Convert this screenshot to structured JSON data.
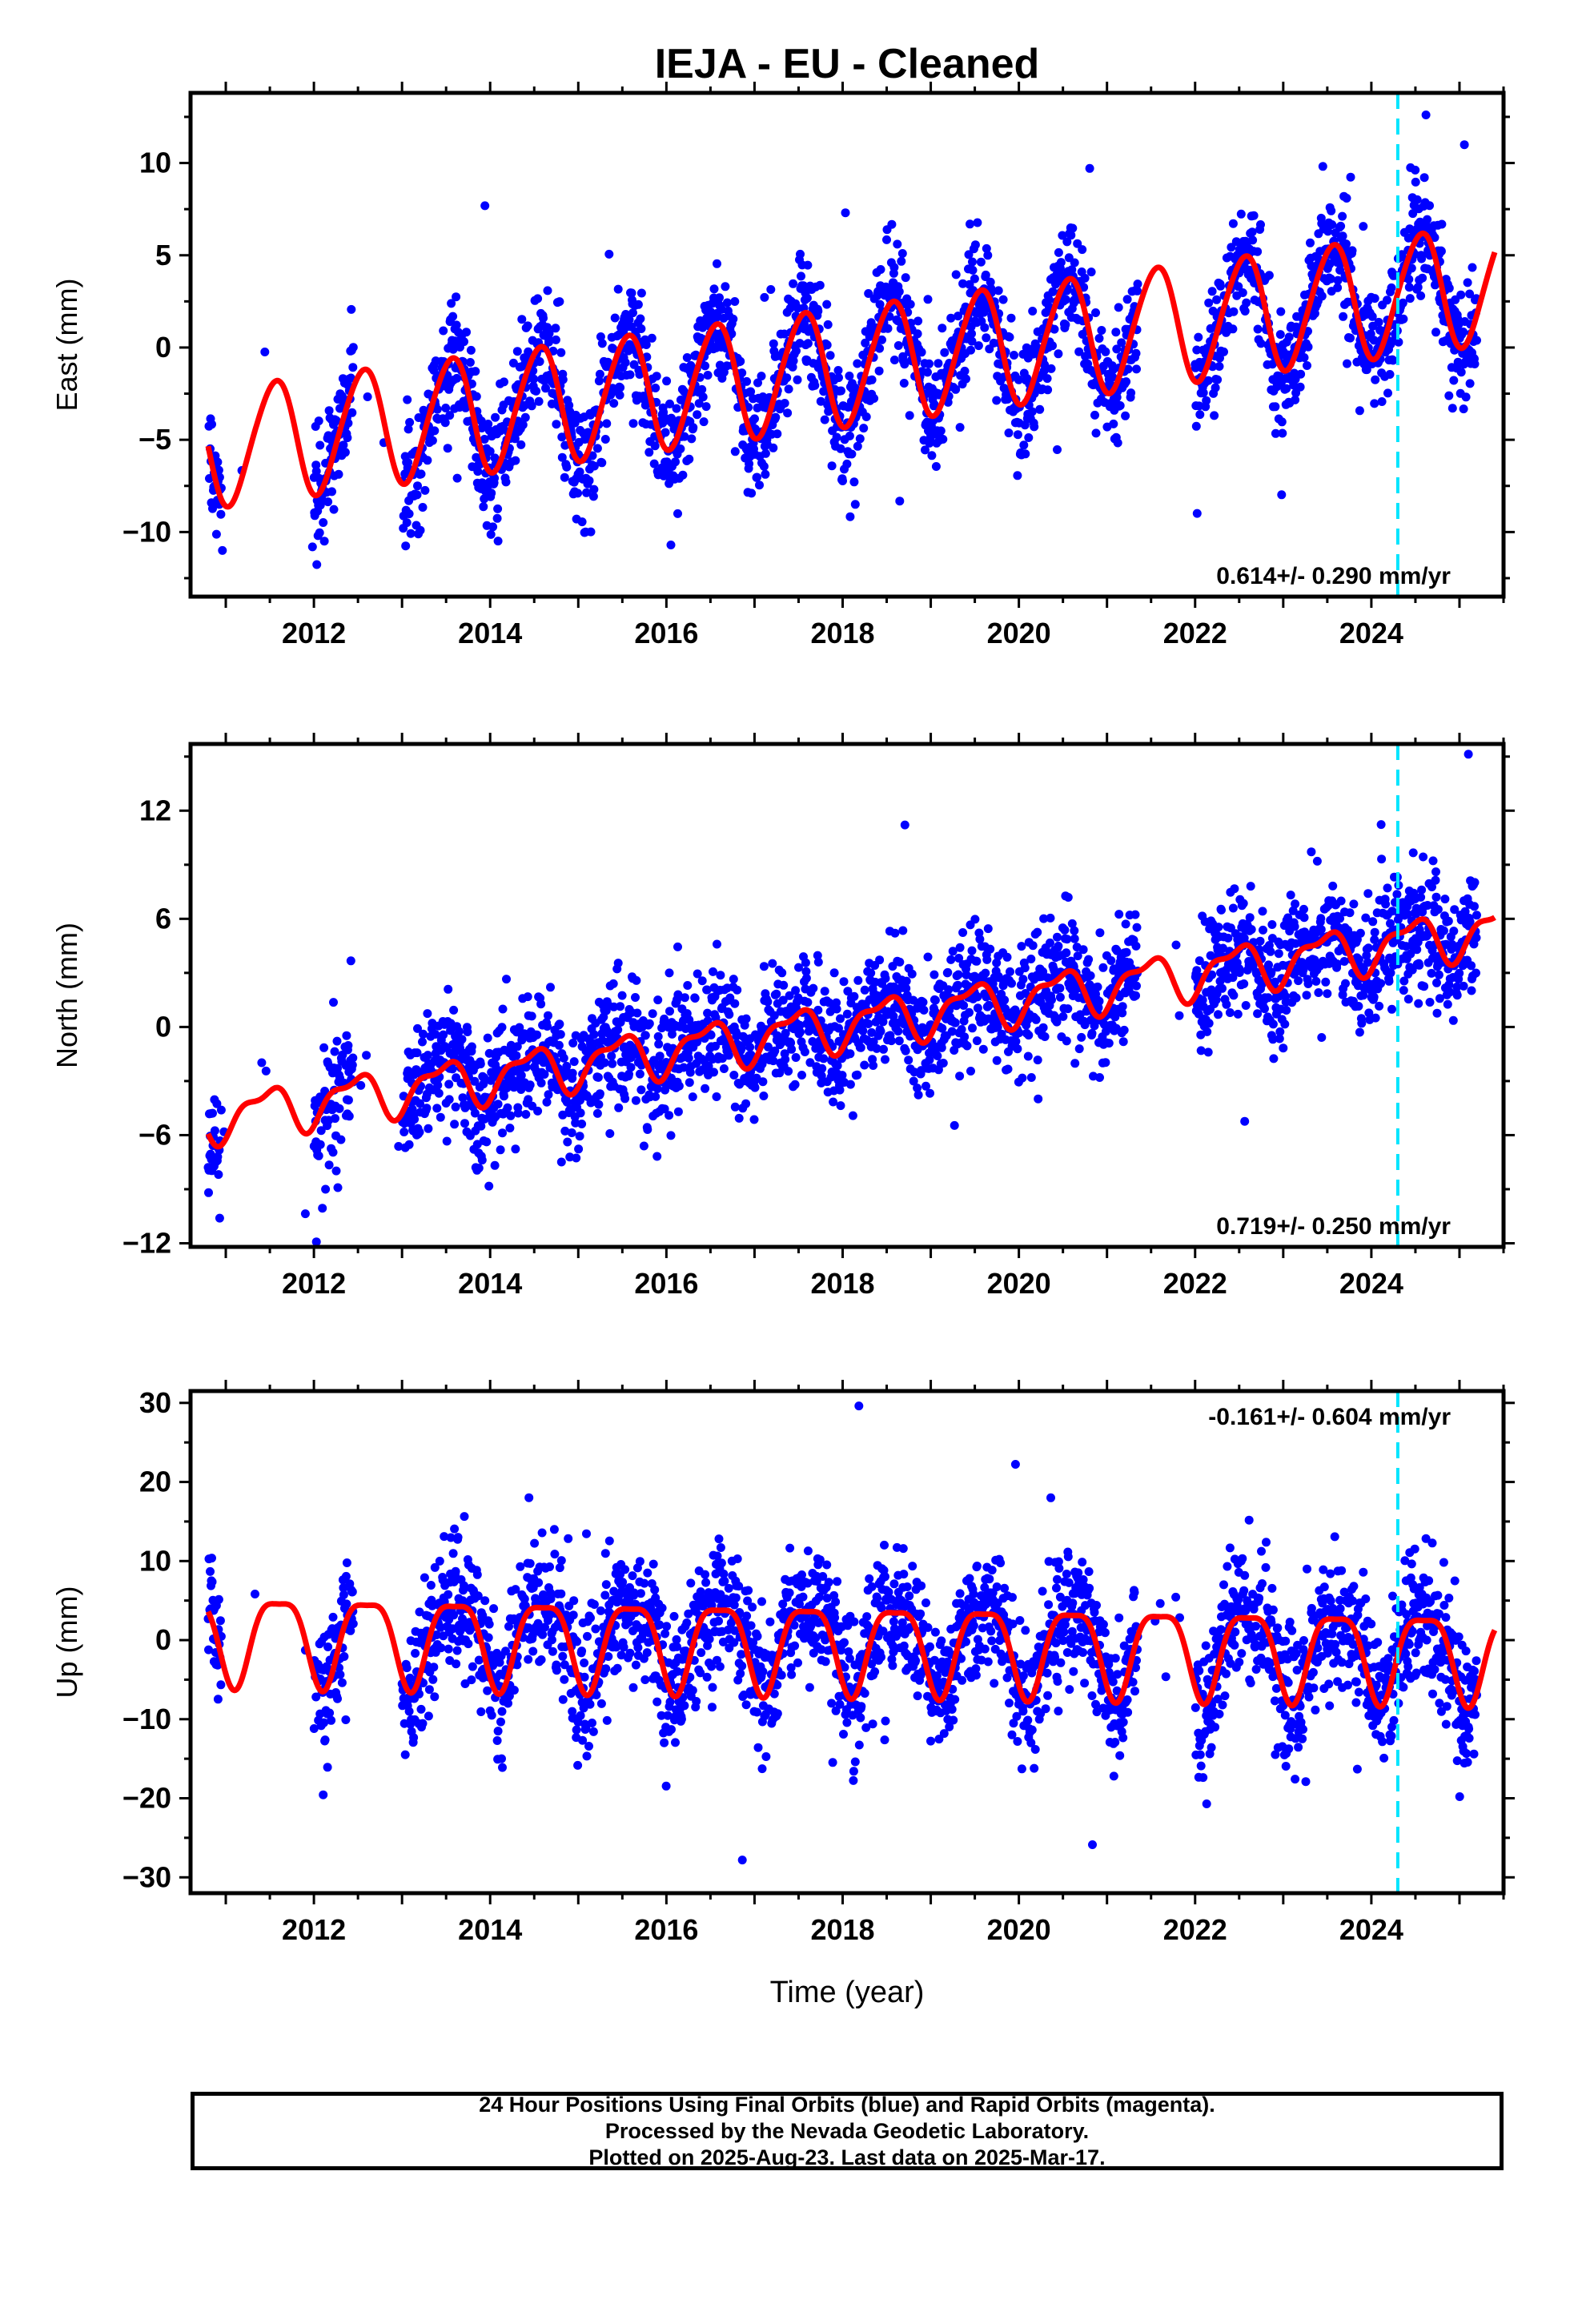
{
  "title": "IEJA  - EU - Cleaned",
  "xlabel": "Time (year)",
  "colors": {
    "data": "#0000ff",
    "model": "#ff0000",
    "marker": "#00e5ff",
    "frame": "#000000"
  },
  "chart_data": [
    {
      "type": "scatter",
      "name": "east",
      "ylabel": "East (mm)",
      "xlim": [
        2010.6,
        2025.5
      ],
      "ylim": [
        -13.5,
        13.8
      ],
      "xticks": [
        "2012",
        "2014",
        "2016",
        "2018",
        "2020",
        "2022",
        "2024"
      ],
      "yticks": [
        "−10",
        "−5",
        "0",
        "5",
        "10"
      ],
      "ytick_values": [
        -10,
        -5,
        0,
        5,
        10
      ],
      "rate_label": "0.614+/- 0.290 mm/yr",
      "rate_position": "bottom-right",
      "marker_line_x": 2024.3,
      "model": {
        "intercept_2012": -4.7,
        "rate": 0.614,
        "annual_amp": 3.2,
        "annual_peak": 0.55,
        "semi_amp": 0.3,
        "semi_peak": 0.2
      },
      "series": [
        {
          "name": "data",
          "x_range": [
            2010.8,
            2025.2
          ],
          "spread": 1.6,
          "outlier_spread": 5.0
        }
      ]
    },
    {
      "type": "scatter",
      "name": "north",
      "ylabel": "North (mm)",
      "xlim": [
        2010.6,
        2025.5
      ],
      "ylim": [
        -12.2,
        15.7
      ],
      "xticks": [
        "2012",
        "2014",
        "2016",
        "2018",
        "2020",
        "2022",
        "2024"
      ],
      "yticks": [
        "−12",
        "−6",
        "0",
        "6",
        "12"
      ],
      "ytick_values": [
        -12,
        -6,
        0,
        6,
        12
      ],
      "rate_label": "0.719+/- 0.250 mm/yr",
      "rate_position": "bottom-right",
      "marker_line_x": 2024.3,
      "model": {
        "intercept_2012": -4.2,
        "rate": 0.719,
        "annual_amp": 1.2,
        "annual_peak": 0.45,
        "semi_amp": 0.5,
        "semi_peak": 0.15
      },
      "series": [
        {
          "name": "data",
          "x_range": [
            2010.8,
            2025.2
          ],
          "spread": 1.7,
          "outlier_spread": 5.5
        }
      ]
    },
    {
      "type": "scatter",
      "name": "up",
      "ylabel": "Up (mm)",
      "xlim": [
        2010.6,
        2025.5
      ],
      "ylim": [
        -32,
        31.5
      ],
      "xticks": [
        "2012",
        "2014",
        "2016",
        "2018",
        "2020",
        "2022",
        "2024"
      ],
      "yticks": [
        "−30",
        "−20",
        "−10",
        "0",
        "10",
        "20",
        "30"
      ],
      "ytick_values": [
        -30,
        -20,
        -10,
        0,
        10,
        20,
        30
      ],
      "rate_label": "-0.161+/- 0.604 mm/yr",
      "rate_position": "top-right",
      "marker_line_x": 2024.3,
      "model": {
        "intercept_2012": 0.5,
        "rate": -0.161,
        "annual_amp": 5.5,
        "annual_peak": 0.6,
        "semi_amp": 1.5,
        "semi_peak": 0.35
      },
      "series": [
        {
          "name": "data",
          "x_range": [
            2010.8,
            2025.2
          ],
          "spread": 4.2,
          "outlier_spread": 12.0
        }
      ]
    }
  ],
  "footer": {
    "line1": "24 Hour Positions Using Final Orbits (blue) and Rapid Orbits (magenta).",
    "line2": "Processed by the Nevada Geodetic Laboratory.",
    "line3": "Plotted on 2025-Aug-23. Last data on 2025-Mar-17."
  }
}
